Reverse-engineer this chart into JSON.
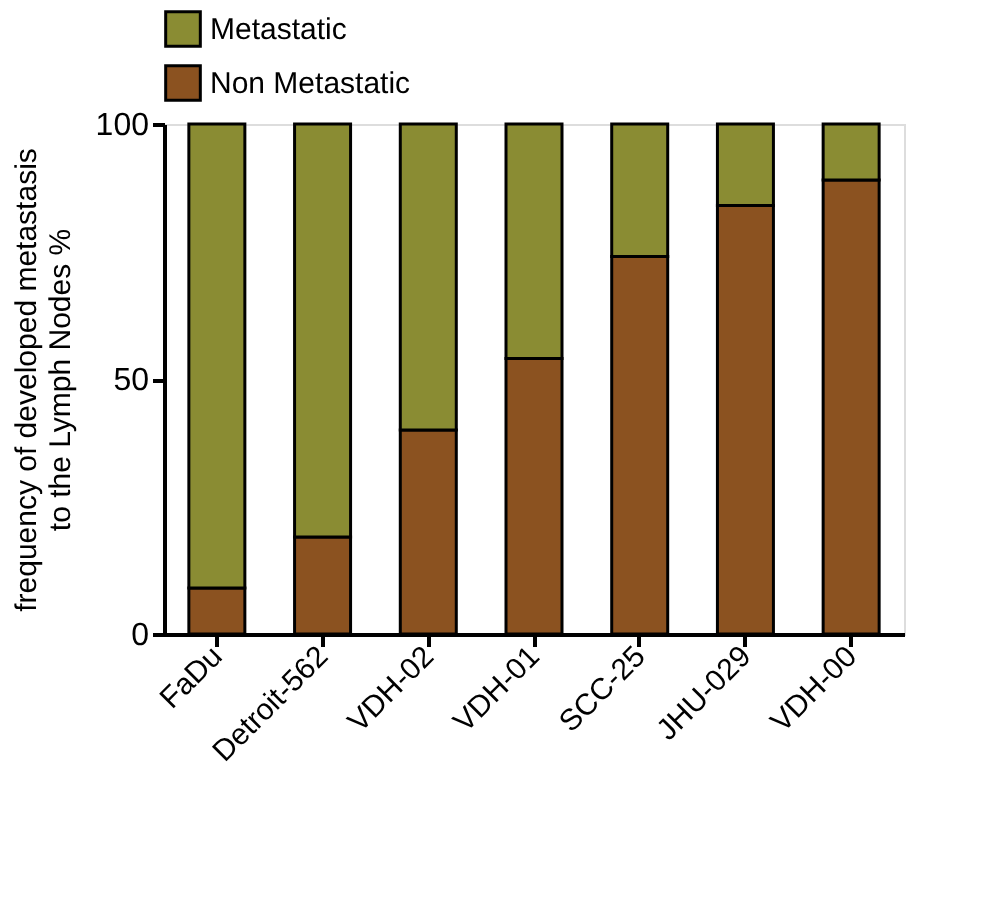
{
  "chart_data": {
    "type": "bar",
    "stacked": true,
    "ylabel": "frequency of developed metastasis to the Lymph Nodes %",
    "categories": [
      "FaDu",
      "Detroit-562",
      "VDH-02",
      "VDH-01",
      "SCC-25",
      "JHU-029",
      "VDH-00"
    ],
    "series": [
      {
        "name": "Non Metastatic",
        "color": "#8b5220",
        "values": [
          9,
          19,
          40,
          54,
          74,
          84,
          89
        ]
      },
      {
        "name": "Metastatic",
        "color": "#8a8c33",
        "values": [
          91,
          81,
          60,
          46,
          26,
          16,
          11
        ]
      }
    ],
    "ylim": [
      0,
      100
    ],
    "yticks": [
      0,
      50,
      100
    ],
    "grid": false,
    "legend": "top left"
  }
}
